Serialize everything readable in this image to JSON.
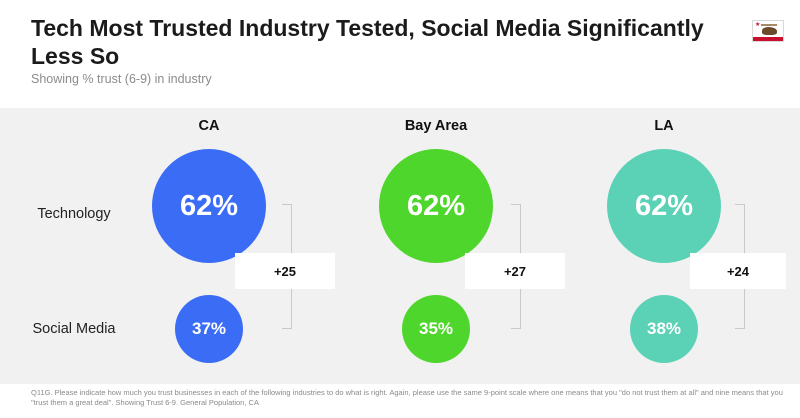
{
  "header": {
    "title": "Tech Most Trusted Industry Tested, Social Media Significantly Less So",
    "subtitle": "Showing % trust (6-9) in industry"
  },
  "flag_icon": "california-flag-icon",
  "chart_data": {
    "type": "bubble",
    "title": "Tech Most Trusted Industry Tested, Social Media Significantly Less So",
    "subtitle": "Showing % trust (6-9) in industry",
    "regions": [
      "CA",
      "Bay Area",
      "LA"
    ],
    "rows": [
      "Technology",
      "Social Media"
    ],
    "series": [
      {
        "name": "Technology",
        "values": [
          62,
          62,
          62
        ],
        "labels": [
          "62%",
          "62%",
          "62%"
        ]
      },
      {
        "name": "Social Media",
        "values": [
          37,
          35,
          38
        ],
        "labels": [
          "37%",
          "35%",
          "38%"
        ]
      }
    ],
    "differences": [
      "+25",
      "+27",
      "+24"
    ],
    "colors": {
      "CA": "#3b6cf6",
      "Bay Area": "#4fd62c",
      "LA": "#5bd1b6"
    }
  },
  "footnote": "Q11G. Please indicate how much you trust businesses in each of the following industries to do what is right.  Again, please use the same 9-point scale where one means that you \"do not trust them at all\" and nine means that you \"trust them a great deal\". Showing Trust 6-9. General Population, CA"
}
